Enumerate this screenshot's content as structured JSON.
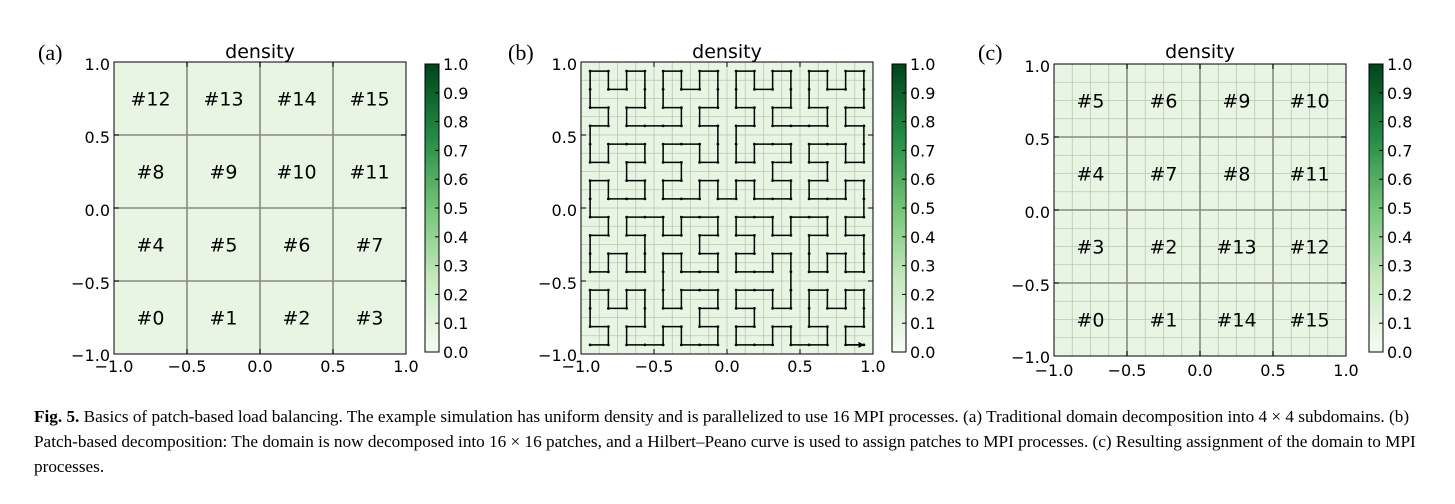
{
  "figure": {
    "colorbar_ticks": [
      "0.0",
      "0.1",
      "0.2",
      "0.3",
      "0.4",
      "0.5",
      "0.6",
      "0.7",
      "0.8",
      "0.9",
      "1.0"
    ],
    "colorbar_top_color": "#00441b",
    "colorbar_bottom_color": "#f7fcf5",
    "domain_fill_color": "#e8f5e3",
    "grid_color": "#888888",
    "panels": [
      {
        "tag": "(a)",
        "title": "density",
        "x_ticks": [
          "−1.0",
          "−0.5",
          "0.0",
          "0.5",
          "1.0"
        ],
        "y_ticks": [
          "−1.0",
          "−0.5",
          "0.0",
          "0.5",
          "1.0"
        ],
        "subdomains": 4,
        "patches": 0,
        "labels": [
          [
            "#12",
            "#13",
            "#14",
            "#15"
          ],
          [
            "#8",
            "#9",
            "#10",
            "#11"
          ],
          [
            "#4",
            "#5",
            "#6",
            "#7"
          ],
          [
            "#0",
            "#1",
            "#2",
            "#3"
          ]
        ],
        "hilbert_curve": false
      },
      {
        "tag": "(b)",
        "title": "density",
        "x_ticks": [
          "−1.0",
          "−0.5",
          "0.0",
          "0.5",
          "1.0"
        ],
        "y_ticks": [
          "−1.0",
          "−0.5",
          "0.0",
          "0.5",
          "1.0"
        ],
        "subdomains": 0,
        "patches": 16,
        "labels": [],
        "hilbert_curve": true,
        "hilbert_order": 4
      },
      {
        "tag": "(c)",
        "title": "density",
        "x_ticks": [
          "−1.0",
          "−0.5",
          "0.0",
          "0.5",
          "1.0"
        ],
        "y_ticks": [
          "−1.0",
          "−0.5",
          "0.0",
          "0.5",
          "1.0"
        ],
        "subdomains": 4,
        "patches": 16,
        "labels": [
          [
            "#5",
            "#6",
            "#9",
            "#10"
          ],
          [
            "#4",
            "#7",
            "#8",
            "#11"
          ],
          [
            "#3",
            "#2",
            "#13",
            "#12"
          ],
          [
            "#0",
            "#1",
            "#14",
            "#15"
          ]
        ],
        "hilbert_curve": false
      }
    ]
  },
  "caption": {
    "label": "Fig. 5.",
    "text": "Basics of patch-based load balancing. The example simulation has uniform density and is parallelized to use 16 MPI processes. (a) Traditional domain decomposition into 4 × 4 subdomains. (b) Patch-based decomposition: The domain is now decomposed into 16 × 16 patches, and a Hilbert–Peano curve is used to assign patches to MPI processes. (c) Resulting assignment of the domain to MPI processes."
  }
}
